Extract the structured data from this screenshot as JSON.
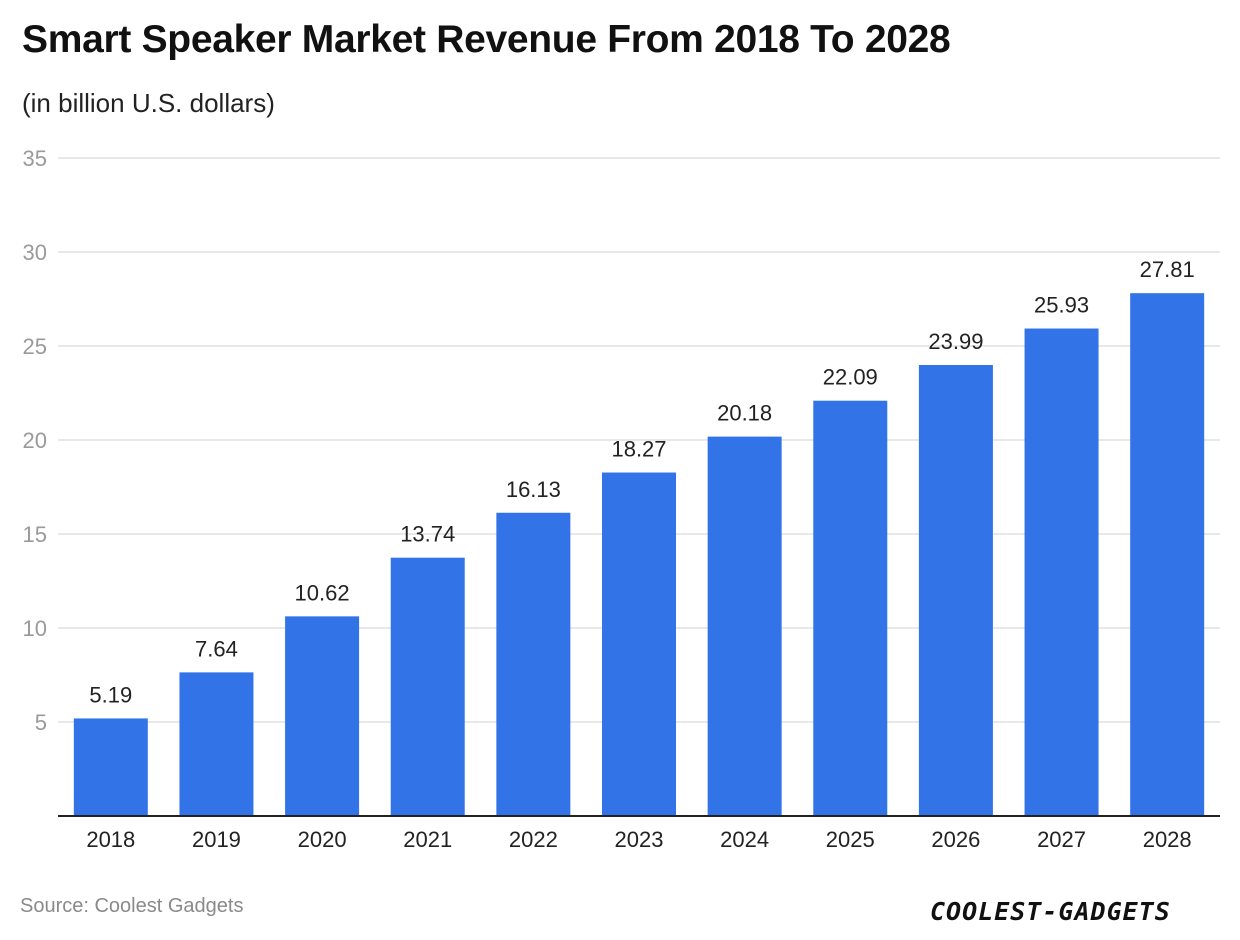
{
  "header": {
    "title": "Smart Speaker Market Revenue From 2018 To 2028",
    "subtitle": "(in billion U.S. dollars)"
  },
  "footer": {
    "source": "Source: Coolest Gadgets",
    "logo": "COOLEST-GADGETS"
  },
  "colors": {
    "bar": "#3274e8",
    "grid": "#e0e0e0",
    "axis": "#222222",
    "tick_label": "#9a9a9a"
  },
  "chart_data": {
    "type": "bar",
    "title": "Smart Speaker Market Revenue From 2018 To 2028",
    "subtitle": "(in billion U.S. dollars)",
    "categories": [
      "2018",
      "2019",
      "2020",
      "2021",
      "2022",
      "2023",
      "2024",
      "2025",
      "2026",
      "2027",
      "2028"
    ],
    "values": [
      5.19,
      7.64,
      10.62,
      13.74,
      16.13,
      18.27,
      20.18,
      22.09,
      23.99,
      25.93,
      27.81
    ],
    "data_labels": [
      "5.19",
      "7.64",
      "10.62",
      "13.74",
      "16.13",
      "18.27",
      "20.18",
      "22.09",
      "23.99",
      "25.93",
      "27.81"
    ],
    "yticks": [
      5,
      10,
      15,
      20,
      25,
      30,
      35
    ],
    "ylim": [
      0,
      35
    ],
    "xlabel": "",
    "ylabel": "",
    "grid": true,
    "legend": "none"
  }
}
